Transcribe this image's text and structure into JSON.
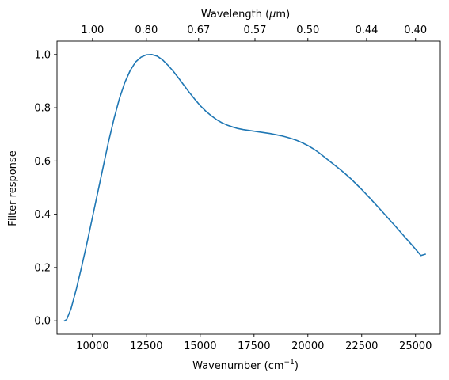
{
  "chart_data": {
    "type": "line",
    "xlabel": "Wavenumber (cm",
    "xlabel_sup": "−1",
    "xlabel_suffix": ")",
    "ylabel": "Filter response",
    "top_xlabel": "Wavelength (",
    "top_xlabel_unit": "μ",
    "top_xlabel_suffix": "m)",
    "xlim": [
      8350,
      26150
    ],
    "ylim": [
      -0.05,
      1.05
    ],
    "x_ticks": [
      10000,
      12500,
      15000,
      17500,
      20000,
      22500,
      25000
    ],
    "x_tick_labels": [
      "10000",
      "12500",
      "15000",
      "17500",
      "20000",
      "22500",
      "25000"
    ],
    "y_ticks": [
      0.0,
      0.2,
      0.4,
      0.6,
      0.8,
      1.0
    ],
    "y_tick_labels": [
      "0.0",
      "0.2",
      "0.4",
      "0.6",
      "0.8",
      "1.0"
    ],
    "top_x_ticks": [
      10000,
      12500,
      14925,
      17544,
      20000,
      22727,
      25000
    ],
    "top_x_tick_labels": [
      "1.00",
      "0.80",
      "0.67",
      "0.57",
      "0.50",
      "0.44",
      "0.40"
    ],
    "grid": false,
    "series": [
      {
        "color": "#1f77b4",
        "x": [
          8700,
          8800,
          9000,
          9250,
          9500,
          9750,
          10000,
          10250,
          10500,
          10750,
          11000,
          11250,
          11500,
          11750,
          12000,
          12250,
          12500,
          12750,
          13000,
          13250,
          13500,
          13750,
          14000,
          14250,
          14500,
          14750,
          15000,
          15250,
          15500,
          15750,
          16000,
          16250,
          16500,
          16750,
          17000,
          17250,
          17500,
          17750,
          18000,
          18250,
          18500,
          18750,
          19000,
          19250,
          19500,
          19750,
          20000,
          20250,
          20500,
          20750,
          21000,
          21250,
          21500,
          21750,
          22000,
          22250,
          22500,
          22750,
          23000,
          23250,
          23500,
          23750,
          24000,
          24250,
          24500,
          24750,
          25000,
          25250,
          25450
        ],
        "y": [
          0.0,
          0.005,
          0.045,
          0.12,
          0.205,
          0.295,
          0.39,
          0.485,
          0.58,
          0.675,
          0.76,
          0.835,
          0.895,
          0.94,
          0.972,
          0.99,
          0.999,
          1.0,
          0.994,
          0.98,
          0.96,
          0.937,
          0.911,
          0.884,
          0.857,
          0.832,
          0.808,
          0.788,
          0.771,
          0.756,
          0.744,
          0.735,
          0.728,
          0.722,
          0.718,
          0.715,
          0.712,
          0.709,
          0.706,
          0.703,
          0.699,
          0.695,
          0.69,
          0.684,
          0.677,
          0.668,
          0.658,
          0.646,
          0.632,
          0.616,
          0.6,
          0.584,
          0.568,
          0.551,
          0.533,
          0.513,
          0.493,
          0.472,
          0.45,
          0.428,
          0.406,
          0.383,
          0.361,
          0.338,
          0.315,
          0.292,
          0.269,
          0.245,
          0.25
        ]
      }
    ]
  }
}
